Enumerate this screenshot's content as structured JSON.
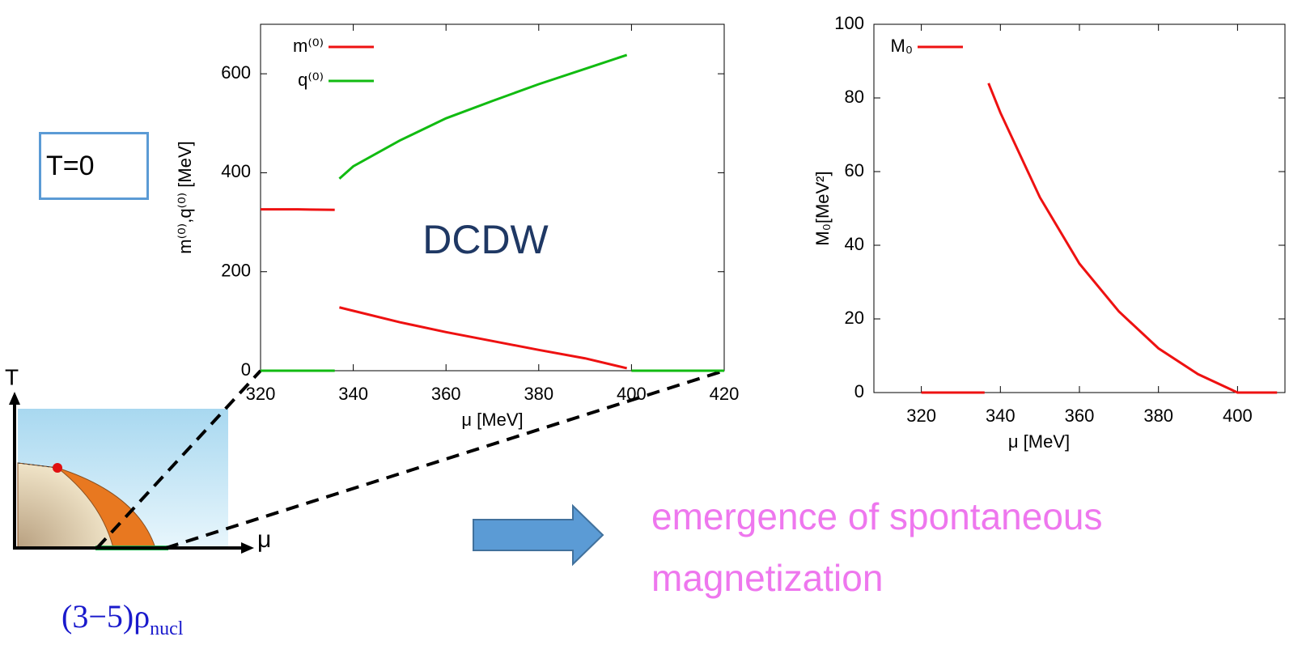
{
  "chart_data": [
    {
      "type": "line",
      "ylabel": "m⁽⁰⁾,q⁽⁰⁾ [MeV]",
      "xlabel": "μ [MeV]",
      "annotation": "DCDW",
      "x": [
        320,
        328,
        336,
        336.5,
        337,
        340,
        350,
        360,
        370,
        380,
        390,
        399,
        399.5,
        400,
        410,
        420
      ],
      "series": [
        {
          "name": "m⁽⁰⁾",
          "color": "#ee1111",
          "values": [
            326,
            326,
            325,
            null,
            128,
            121,
            98,
            78,
            60,
            42,
            25,
            5,
            null,
            0,
            0,
            0
          ]
        },
        {
          "name": "q⁽⁰⁾",
          "color": "#11bb11",
          "values": [
            0,
            0,
            0,
            null,
            388,
            413,
            465,
            510,
            545,
            579,
            610,
            638,
            null,
            0,
            0,
            0
          ]
        }
      ],
      "xlim": [
        320,
        420
      ],
      "xticks": [
        320,
        340,
        360,
        380,
        400,
        420
      ],
      "ylim": [
        0,
        700
      ],
      "yticks": [
        0,
        200,
        400,
        600
      ],
      "legend": "upper left"
    },
    {
      "type": "line",
      "ylabel": "M₀[MeV²]",
      "xlabel": "μ [MeV]",
      "x": [
        320,
        336,
        336.5,
        337,
        340,
        350,
        360,
        370,
        380,
        390,
        400,
        410
      ],
      "series": [
        {
          "name": "M₀",
          "color": "#ee1111",
          "values": [
            0,
            0,
            null,
            84,
            76,
            53,
            35,
            22,
            12,
            5,
            0,
            0
          ]
        }
      ],
      "xlim": [
        308,
        412
      ],
      "xticks": [
        320,
        340,
        360,
        380,
        400
      ],
      "ylim": [
        0,
        100
      ],
      "yticks": [
        0,
        20,
        40,
        60,
        80,
        100
      ],
      "legend": "upper left"
    }
  ],
  "slide": {
    "box_label": "T=0",
    "message": "emergence of spontaneous magnetization",
    "density": "(3−5)ρ",
    "density_sub": "nucl",
    "axis_t": "T",
    "axis_mu": "μ"
  }
}
